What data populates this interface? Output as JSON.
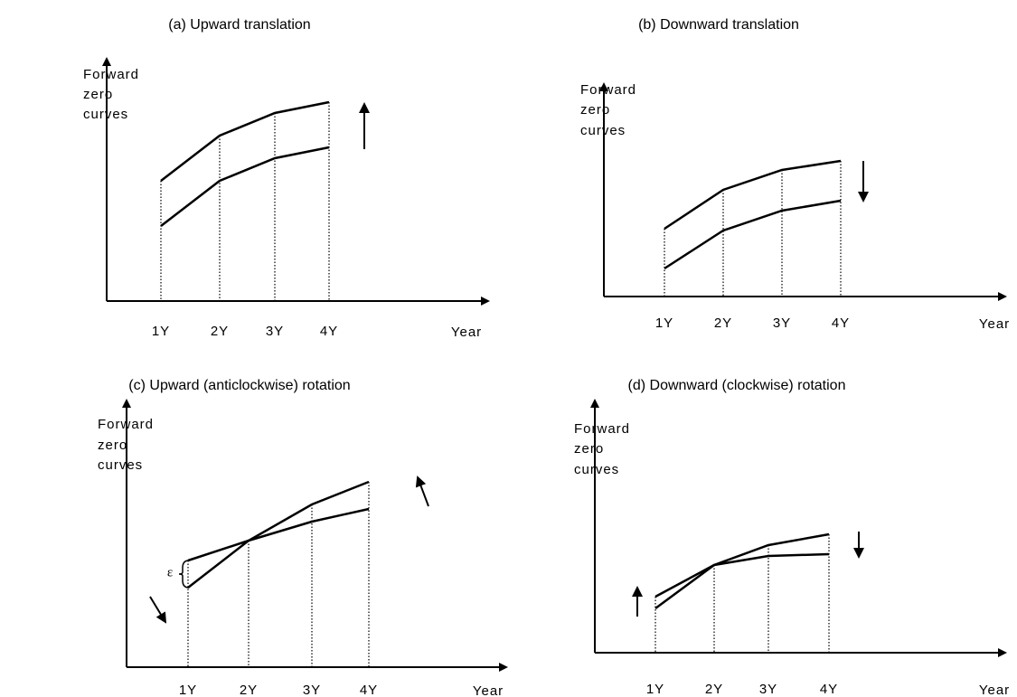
{
  "panels": [
    {
      "title": "(a) Upward translation",
      "y_label": [
        "Forward",
        "zero",
        "curves"
      ],
      "x_label": "Year",
      "ticks": [
        "1Y",
        "2Y",
        "3Y",
        "4Y"
      ]
    },
    {
      "title": "(b) Downward translation",
      "y_label": [
        "Forward",
        "zero",
        "curves"
      ],
      "x_label": "Year",
      "ticks": [
        "1Y",
        "2Y",
        "3Y",
        "4Y"
      ]
    },
    {
      "title": "(c) Upward (anticlockwise) rotation",
      "y_label": [
        "Forward",
        "zero",
        "curves"
      ],
      "x_label": "Year",
      "ticks": [
        "1Y",
        "2Y",
        "3Y",
        "4Y"
      ],
      "annotation": "ε"
    },
    {
      "title": "(d) Downward (clockwise) rotation",
      "y_label": [
        "Forward",
        "zero",
        "curves"
      ],
      "x_label": "Year",
      "ticks": [
        "1Y",
        "2Y",
        "3Y",
        "4Y"
      ]
    }
  ]
}
